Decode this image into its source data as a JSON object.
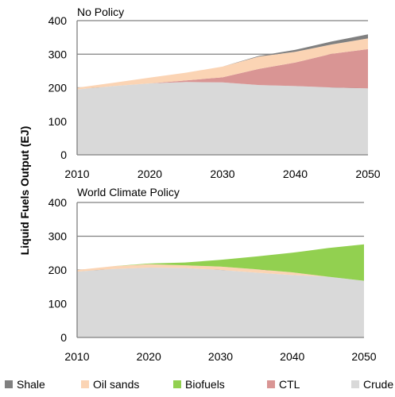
{
  "ylabel": "Liquid Fuels Output (EJ)",
  "legend": [
    {
      "name": "Shale",
      "color": "#808080"
    },
    {
      "name": "Oil sands",
      "color": "#fbd4b4"
    },
    {
      "name": "Biofuels",
      "color": "#92d050"
    },
    {
      "name": "CTL",
      "color": "#d99594"
    },
    {
      "name": "Crude",
      "color": "#d9d9d9"
    }
  ],
  "chart_data": [
    {
      "type": "area",
      "title": "No Policy",
      "ylim": [
        0,
        400
      ],
      "yticks": [
        0,
        100,
        200,
        300,
        400
      ],
      "xlim": [
        2010,
        2050
      ],
      "xticks": [
        2010,
        2020,
        2030,
        2040,
        2050
      ],
      "x": [
        2010,
        2015,
        2020,
        2025,
        2030,
        2035,
        2040,
        2045,
        2050
      ],
      "stacked": true,
      "series": [
        {
          "name": "Crude",
          "values": [
            195,
            205,
            213,
            217,
            216,
            208,
            205,
            201,
            198
          ]
        },
        {
          "name": "CTL",
          "values": [
            0,
            0,
            0,
            5,
            15,
            48,
            70,
            100,
            117
          ]
        },
        {
          "name": "Oil sands",
          "values": [
            5,
            10,
            17,
            23,
            32,
            37,
            32,
            28,
            32
          ]
        },
        {
          "name": "Biofuels",
          "values": [
            0,
            0,
            0,
            0,
            0,
            0,
            0,
            0,
            0
          ]
        },
        {
          "name": "Shale",
          "values": [
            0,
            0,
            0,
            0,
            0,
            2,
            6,
            9,
            12
          ]
        }
      ]
    },
    {
      "type": "area",
      "title": "World Climate Policy",
      "ylim": [
        0,
        400
      ],
      "yticks": [
        0,
        100,
        200,
        300,
        400
      ],
      "xlim": [
        2010,
        2050
      ],
      "xticks": [
        2010,
        2020,
        2030,
        2040,
        2050
      ],
      "x": [
        2010,
        2015,
        2020,
        2025,
        2030,
        2035,
        2040,
        2045,
        2050
      ],
      "stacked": true,
      "series": [
        {
          "name": "Crude",
          "values": [
            195,
            203,
            207,
            206,
            200,
            192,
            185,
            180,
            168
          ]
        },
        {
          "name": "CTL",
          "values": [
            0,
            0,
            0,
            0,
            0,
            0,
            0,
            0,
            0
          ]
        },
        {
          "name": "Oil sands",
          "values": [
            5,
            8,
            10,
            8,
            10,
            10,
            8,
            0,
            0
          ]
        },
        {
          "name": "Biofuels",
          "values": [
            0,
            0,
            2,
            8,
            20,
            38,
            58,
            85,
            108
          ]
        },
        {
          "name": "Shale",
          "values": [
            0,
            0,
            0,
            0,
            0,
            0,
            0,
            0,
            0
          ]
        }
      ]
    }
  ]
}
